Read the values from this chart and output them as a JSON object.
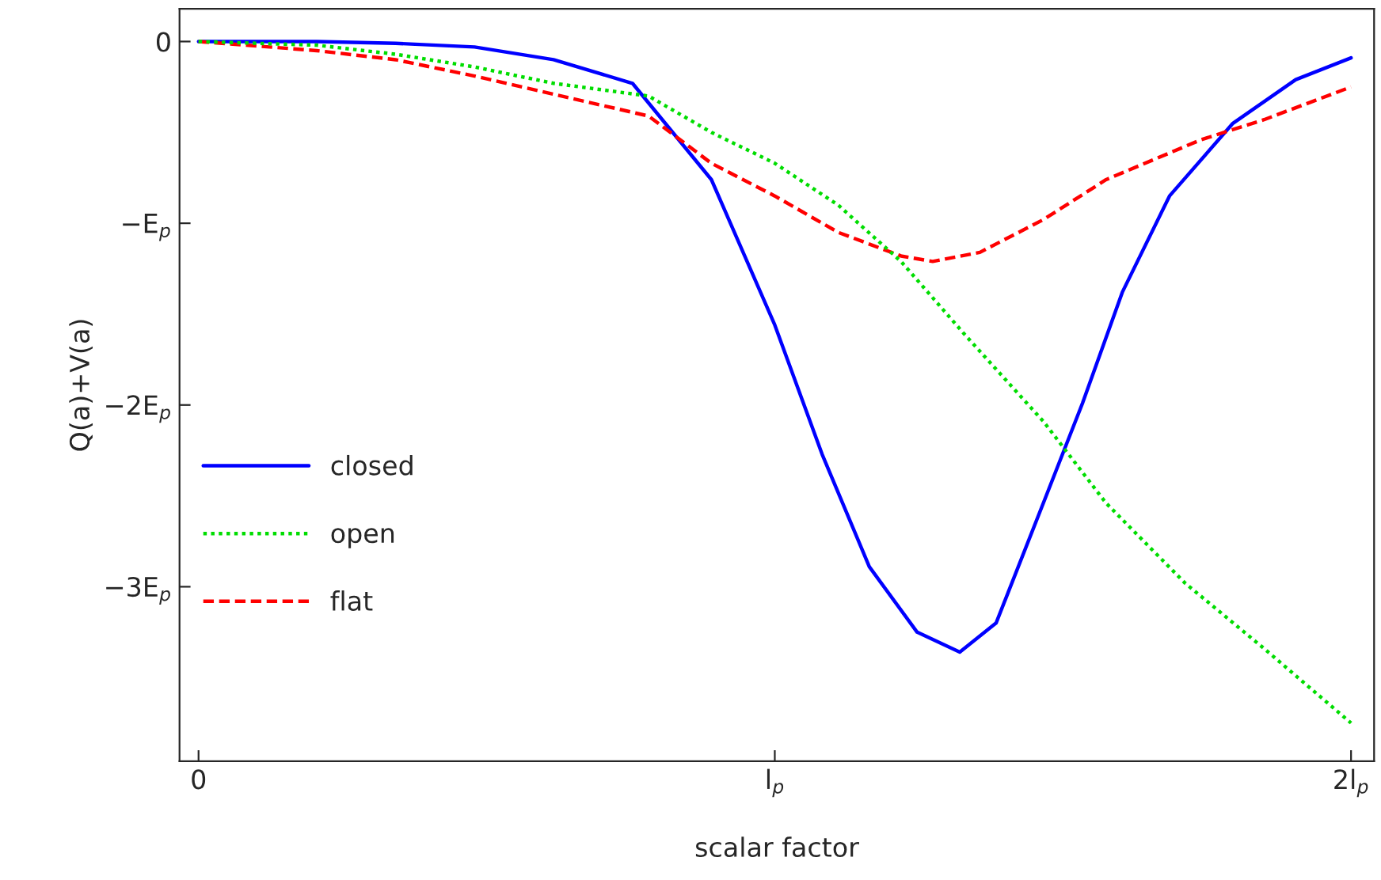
{
  "chart_data": {
    "type": "line",
    "xlabel": "scalar factor",
    "ylabel": "Q(a)+V(a)",
    "xlim": [
      -0.033,
      2.04
    ],
    "ylim": [
      -3.96,
      0.18
    ],
    "xticks": [
      0,
      {
        "value": 1,
        "label": "l$_{p}$"
      },
      {
        "value": 2,
        "label": "2l$_{p}$"
      }
    ],
    "yticks": [
      0,
      {
        "value": -1,
        "label": "−E$_{p}$"
      },
      {
        "value": -2,
        "label": "−2E$_{p}$"
      },
      {
        "value": -3,
        "label": "−3E$_{p}$"
      }
    ],
    "grid": false,
    "legend": "left",
    "series": [
      {
        "name": "closed",
        "color": "#0000ff",
        "line_style": "solid",
        "x": [
          0,
          0.205,
          0.342,
          0.479,
          0.616,
          0.753,
          0.89,
          1.0,
          1.082,
          1.164,
          1.247,
          1.321,
          1.384,
          1.466,
          1.534,
          1.603,
          1.685,
          1.795,
          1.904,
          2.0
        ],
        "values": [
          0,
          0,
          -0.01,
          -0.03,
          -0.1,
          -0.23,
          -0.76,
          -1.56,
          -2.27,
          -2.89,
          -3.25,
          -3.36,
          -3.2,
          -2.54,
          -1.99,
          -1.38,
          -0.85,
          -0.45,
          -0.21,
          -0.09
        ]
      },
      {
        "name": "open",
        "color": "#00dd00",
        "line_style": "dotted",
        "x": [
          0,
          0.205,
          0.342,
          0.479,
          0.616,
          0.781,
          0.89,
          1.0,
          1.11,
          1.219,
          1.329,
          1.466,
          1.575,
          1.712,
          1.849,
          2.0
        ],
        "values": [
          0,
          -0.02,
          -0.07,
          -0.14,
          -0.23,
          -0.3,
          -0.5,
          -0.67,
          -0.9,
          -1.21,
          -1.61,
          -2.09,
          -2.54,
          -2.98,
          -3.34,
          -3.75
        ]
      },
      {
        "name": "flat",
        "color": "#ff0000",
        "line_style": "dashed",
        "x": [
          0,
          0.205,
          0.342,
          0.479,
          0.616,
          0.781,
          0.89,
          1.0,
          1.11,
          1.219,
          1.274,
          1.356,
          1.466,
          1.575,
          1.74,
          1.849,
          2.0
        ],
        "values": [
          0,
          -0.05,
          -0.1,
          -0.19,
          -0.29,
          -0.41,
          -0.67,
          -0.85,
          -1.05,
          -1.18,
          -1.21,
          -1.16,
          -0.98,
          -0.76,
          -0.54,
          -0.43,
          -0.25
        ]
      }
    ]
  }
}
